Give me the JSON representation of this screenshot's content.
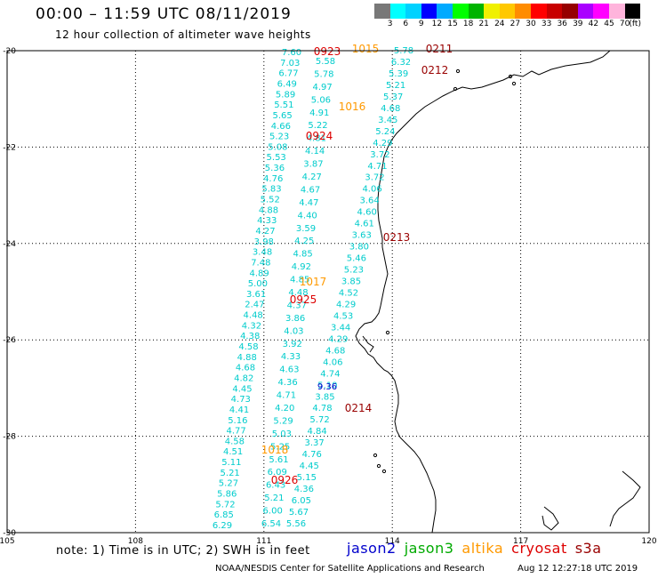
{
  "header": {
    "title": "00:00 – 11:59 UTC 08/11/2019",
    "subtitle": "12 hour collection of altimeter wave heights"
  },
  "colorbar": {
    "colors": [
      "#787878",
      "#00ffff",
      "#00d2ff",
      "#0000ff",
      "#00aaff",
      "#00ff00",
      "#00b400",
      "#f0f000",
      "#ffc800",
      "#ff8c00",
      "#ff0000",
      "#c80000",
      "#960000",
      "#aa00ff",
      "#ff00ff",
      "#ffb4dc",
      "#000000"
    ],
    "labels": [
      "3",
      "6",
      "9",
      "12",
      "15",
      "18",
      "21",
      "24",
      "27",
      "30",
      "33",
      "36",
      "39",
      "42",
      "45",
      "70",
      "(ft)"
    ]
  },
  "map": {
    "lon_ticks": [
      "105",
      "108",
      "111",
      "114",
      "117",
      "120"
    ],
    "lat_ticks": [
      "-20",
      "-22",
      "-24",
      "-26",
      "-28",
      "-30"
    ],
    "coastline_color": "#000000",
    "grid_color": "#000000"
  },
  "satellites": [
    {
      "name": "jason2",
      "color": "#0000cc"
    },
    {
      "name": "jason3",
      "color": "#00aa00"
    },
    {
      "name": "altika",
      "color": "#ff9900"
    },
    {
      "name": "cryosat",
      "color": "#dd0000"
    },
    {
      "name": "s3a",
      "color": "#990000"
    }
  ],
  "track_values": {
    "color": "#00cccc",
    "left_track": [
      "7.60",
      "7.03",
      "6.77",
      "6.49",
      "5.89",
      "5.51",
      "5.65",
      "4.66",
      "5.23",
      "5.08",
      "5.53",
      "5.36",
      "4.76",
      "5.83",
      "5.52",
      "4.88",
      "4.33",
      "4.27",
      "3.98",
      "3.48",
      "7.48",
      "4.89",
      "5.00",
      "3.61",
      "2.47",
      "4.48",
      "4.32",
      "4.38",
      "4.58",
      "4.88",
      "4.68",
      "4.82",
      "4.45",
      "4.73",
      "4.41",
      "5.16",
      "4.77",
      "4.58",
      "4.51",
      "5.11",
      "5.21",
      "5.27",
      "5.86",
      "5.72",
      "6.85",
      "6.29"
    ],
    "mid_track": [
      "5.58",
      "5.78",
      "4.97",
      "5.06",
      "4.91",
      "5.22",
      "4.81",
      "4.14",
      "3.87",
      "4.27",
      "4.67",
      "4.47",
      "4.40",
      "3.59",
      "4.25",
      "4.85",
      "4.92",
      "4.85",
      "4.48",
      "4.37",
      "3.86",
      "4.03",
      "3.92",
      "4.33",
      "4.63",
      "4.36",
      "4.71",
      "4.20",
      "5.29",
      "5.03",
      "5.25",
      "5.61",
      "6.09",
      "6.43",
      "5.21",
      "6.00",
      "6.54"
    ],
    "right_track": [
      "5.78",
      "6.32",
      "5.39",
      "5.21",
      "5.37",
      "4.68",
      "3.45",
      "5.24",
      "4.29",
      "3.72",
      "4.71",
      "3.72",
      "4.06",
      "3.64",
      "4.60",
      "4.61",
      "3.63",
      "3.80",
      "5.46",
      "5.23",
      "3.85",
      "4.52",
      "4.29",
      "4.53",
      "3.44",
      "4.29",
      "4.68",
      "4.06",
      "4.74",
      "5.10",
      "3.85",
      "4.78",
      "5.72",
      "4.84",
      "3.37",
      "4.76",
      "4.45",
      "5.15",
      "4.36",
      "6.05",
      "5.67",
      "5.56"
    ],
    "highlight_value": "9.36",
    "highlight_color": "#0000cc"
  },
  "time_labels": [
    {
      "text": "0923",
      "sat": "cryosat",
      "color": "#dd0000"
    },
    {
      "text": "1015",
      "sat": "altika",
      "color": "#ff9900"
    },
    {
      "text": "0211",
      "sat": "s3a",
      "color": "#990000"
    },
    {
      "text": "0212",
      "sat": "s3a",
      "color": "#990000"
    },
    {
      "text": "1016",
      "sat": "altika",
      "color": "#ff9900"
    },
    {
      "text": "0924",
      "sat": "cryosat",
      "color": "#dd0000"
    },
    {
      "text": "0213",
      "sat": "s3a",
      "color": "#990000"
    },
    {
      "text": "1017",
      "sat": "altika",
      "color": "#ff9900"
    },
    {
      "text": "0925",
      "sat": "cryosat",
      "color": "#dd0000"
    },
    {
      "text": "0214",
      "sat": "s3a",
      "color": "#990000"
    },
    {
      "text": "1018",
      "sat": "altika",
      "color": "#ff9900"
    },
    {
      "text": "0926",
      "sat": "cryosat",
      "color": "#dd0000"
    }
  ],
  "footer": {
    "note": "note: 1) Time is in UTC; 2) SWH is in feet",
    "credit": "NOAA/NESDIS Center for Satellite Applications and Research",
    "timestamp": "Aug 12 12:27:18 UTC 2019"
  }
}
